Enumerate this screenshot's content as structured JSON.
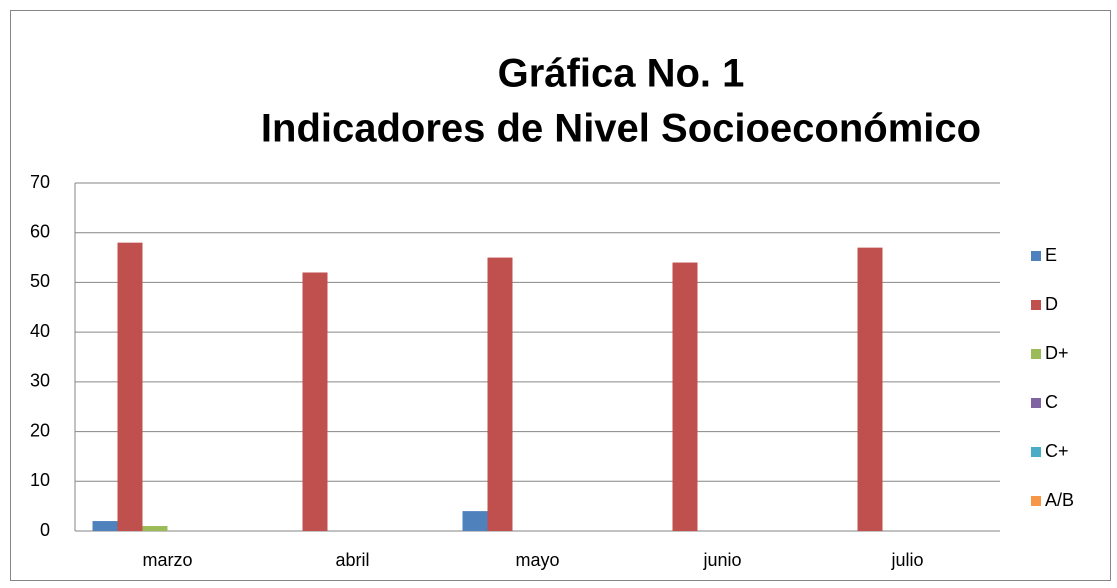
{
  "chart_data": {
    "type": "bar",
    "title": [
      "Gráfica No. 1",
      "Indicadores de Nivel Socioeconómico"
    ],
    "categories": [
      "marzo",
      "abril",
      "mayo",
      "junio",
      "julio"
    ],
    "series": [
      {
        "name": "E",
        "color": "#4f81bd",
        "values": [
          2,
          0,
          4,
          0,
          0
        ]
      },
      {
        "name": "D",
        "color": "#c0504d",
        "values": [
          58,
          52,
          55,
          54,
          57
        ]
      },
      {
        "name": "D+",
        "color": "#9bbb59",
        "values": [
          1,
          0,
          0,
          0,
          0
        ]
      },
      {
        "name": "C",
        "color": "#8064a2",
        "values": [
          0,
          0,
          0,
          0,
          0
        ]
      },
      {
        "name": "C+",
        "color": "#4bacc6",
        "values": [
          0,
          0,
          0,
          0,
          0
        ]
      },
      {
        "name": "A/B",
        "color": "#f79646",
        "values": [
          0,
          0,
          0,
          0,
          0
        ]
      }
    ],
    "ylim": [
      0,
      70
    ],
    "yticks": [
      0,
      10,
      20,
      30,
      40,
      50,
      60,
      70
    ],
    "grid": true,
    "legend": "right"
  }
}
